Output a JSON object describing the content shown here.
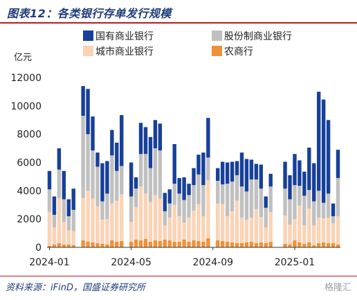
{
  "header": {
    "title": "图表12：各类银行存单发行规模"
  },
  "footer": {
    "source": "资料来源：iFinD，国盛证券研究所",
    "watermark": "格隆汇"
  },
  "colors": {
    "国有商业银行": "#17409a",
    "股份制商业银行": "#c0c0c0",
    "城市商业银行": "#fad3b6",
    "农商行": "#f0913a"
  },
  "chart_data": {
    "type": "bar",
    "stacked": true,
    "unit_label": "亿元",
    "ylim": [
      0,
      12000
    ],
    "yticks": [
      0,
      2000,
      4000,
      6000,
      8000,
      10000,
      12000
    ],
    "xtick_labels": [
      "2024-01",
      "2024-05",
      "2024-09",
      "2025-01"
    ],
    "xtick_index": [
      0,
      17,
      34,
      51
    ],
    "legend": [
      "国有商业银行",
      "股份制商业银行",
      "城市商业银行",
      "农商行"
    ],
    "series": [
      {
        "name": "农商行",
        "values": [
          100,
          200,
          300,
          200,
          200,
          150,
          0,
          500,
          400,
          350,
          300,
          250,
          200,
          500,
          400,
          450,
          0,
          400,
          550,
          500,
          600,
          400,
          500,
          450,
          550,
          500,
          400,
          400,
          550,
          400,
          500,
          450,
          400,
          650,
          0,
          500,
          450,
          400,
          350,
          300,
          300,
          350,
          400,
          300,
          350,
          300,
          400,
          0,
          0,
          250,
          200,
          500,
          350,
          250,
          350,
          150,
          300,
          350,
          300,
          300,
          200
        ]
      },
      {
        "name": "城市商业银行",
        "values": [
          2400,
          1200,
          3200,
          1600,
          1000,
          1000,
          0,
          3000,
          3600,
          3100,
          2600,
          1700,
          1800,
          2600,
          2900,
          3300,
          0,
          1400,
          2300,
          3800,
          3200,
          2800,
          3200,
          3000,
          1000,
          1600,
          2600,
          1800,
          1200,
          1700,
          2100,
          2600,
          1800,
          4100,
          0,
          2600,
          2600,
          1800,
          2200,
          3000,
          1800,
          1600,
          1700,
          2400,
          1800,
          1100,
          2100,
          0,
          0,
          2000,
          1400,
          1500,
          2600,
          1300,
          2400,
          1400,
          1800,
          1700,
          1800,
          1400,
          2000
        ]
      },
      {
        "name": "股份制商业银行",
        "values": [
          1600,
          900,
          2000,
          1600,
          1000,
          1500,
          0,
          5800,
          4000,
          3400,
          2800,
          1300,
          1800,
          3400,
          2100,
          2000,
          0,
          1800,
          1300,
          2300,
          2800,
          2400,
          3300,
          3400,
          1000,
          1000,
          1500,
          1600,
          1600,
          1600,
          1800,
          2100,
          2200,
          1600,
          0,
          1600,
          1400,
          2300,
          2100,
          1800,
          2200,
          2000,
          2700,
          2100,
          2000,
          1400,
          1800,
          0,
          0,
          1900,
          1800,
          2400,
          1400,
          2100,
          1300,
          1700,
          1900,
          1100,
          1700,
          500,
          2700
        ]
      },
      {
        "name": "国有商业银行",
        "values": [
          1300,
          1300,
          1500,
          2000,
          1200,
          1500,
          0,
          2100,
          3200,
          2400,
          1000,
          2700,
          2300,
          1800,
          2000,
          3600,
          0,
          2400,
          800,
          2200,
          1900,
          2200,
          2000,
          1900,
          1300,
          1000,
          2800,
          1100,
          1600,
          800,
          1200,
          1400,
          2300,
          2800,
          0,
          900,
          1600,
          1500,
          1400,
          1000,
          2400,
          2300,
          1400,
          1100,
          1700,
          800,
          900,
          0,
          0,
          1900,
          1700,
          2200,
          1800,
          1700,
          3000,
          2700,
          7000,
          7300,
          5200,
          900,
          2000
        ]
      }
    ],
    "grid": false
  }
}
